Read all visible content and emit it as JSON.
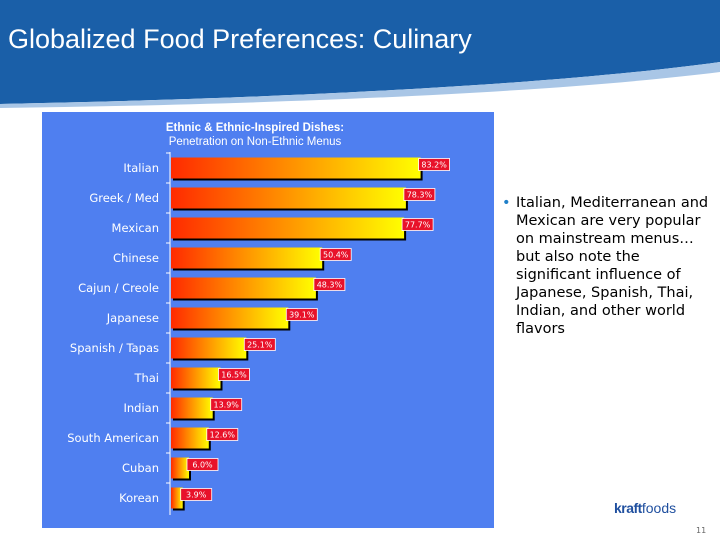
{
  "slide": {
    "title": "Globalized Food Preferences:  Culinary",
    "bullet": "Italian, Mediterranean and Mexican are very popular on mainstream menus…but also note the significant influence of Japanese, Spanish, Thai, Indian, and other world flavors",
    "logo": {
      "part1": "kraft",
      "part2": "foods"
    },
    "page_number": "11"
  },
  "colors": {
    "header_blue": "#1a5fa8",
    "panel_blue": "#4f7ff0",
    "bar_start": "#ff2a00",
    "bar_end": "#ffff00",
    "label_bg": "#e8122a"
  },
  "chart_data": {
    "type": "bar",
    "orientation": "horizontal",
    "title": "Ethnic & Ethnic-Inspired Dishes:",
    "subtitle": "Penetration on Non-Ethnic Menus",
    "categories": [
      "Italian",
      "Greek / Med",
      "Mexican",
      "Chinese",
      "Cajun / Creole",
      "Japanese",
      "Spanish / Tapas",
      "Thai",
      "Indian",
      "South American",
      "Cuban",
      "Korean"
    ],
    "values": [
      83.2,
      78.3,
      77.7,
      50.4,
      48.3,
      39.1,
      25.1,
      16.5,
      13.9,
      12.6,
      6.0,
      3.9
    ],
    "data_labels": [
      "83.2%",
      "78.3%",
      "77.7%",
      "50.4%",
      "48.3%",
      "39.1%",
      "25.1%",
      "16.5%",
      "13.9%",
      "12.6%",
      "6.0%",
      "3.9%"
    ],
    "xlim": [
      0,
      100
    ],
    "grid": false,
    "legend": "none"
  }
}
